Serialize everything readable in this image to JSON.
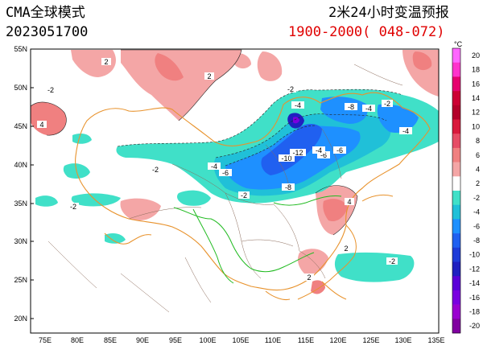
{
  "header": {
    "model": "CMA全球模式",
    "init_time": "2023051700",
    "title": "2米24小时变温预报",
    "valid_range": "1900-2000( 048-072)"
  },
  "map": {
    "lat_labels": [
      "55N",
      "50N",
      "45N",
      "40N",
      "35N",
      "30N",
      "25N",
      "20N"
    ],
    "lon_labels": [
      "75E",
      "80E",
      "85E",
      "90E",
      "95E",
      "100E",
      "105E",
      "110E",
      "115E",
      "120E",
      "125E",
      "130E",
      "135E"
    ],
    "contour_labels": [
      "2",
      "-2",
      "4",
      "-4",
      "-6",
      "-8",
      "-10",
      "-12",
      "2",
      "-2",
      "-4",
      "-6",
      "-4",
      "-4",
      "-8",
      "-2",
      "-4",
      "-6",
      "-2",
      "-2",
      "-2",
      "2",
      "4",
      "2",
      "-2"
    ]
  },
  "colorbar": {
    "levels": [
      "20",
      "18",
      "16",
      "14",
      "12",
      "10",
      "8",
      "6",
      "4",
      "2",
      "-2",
      "-4",
      "-6",
      "-8",
      "-10",
      "-12",
      "-14",
      "-16",
      "-18",
      "-20"
    ],
    "top_label": "°C",
    "colors": [
      "#ff66ff",
      "#ff33cc",
      "#e6006e",
      "#cc0033",
      "#b3002a",
      "#d91a3d",
      "#e64d66",
      "#f08080",
      "#f4a6a6",
      "#ffffff",
      "#40e0c8",
      "#20c0d8",
      "#1e90ff",
      "#2060f0",
      "#1e3cd8",
      "#2020c0",
      "#5a00d8",
      "#7a00e0",
      "#9a00d0",
      "#8000a0"
    ]
  }
}
